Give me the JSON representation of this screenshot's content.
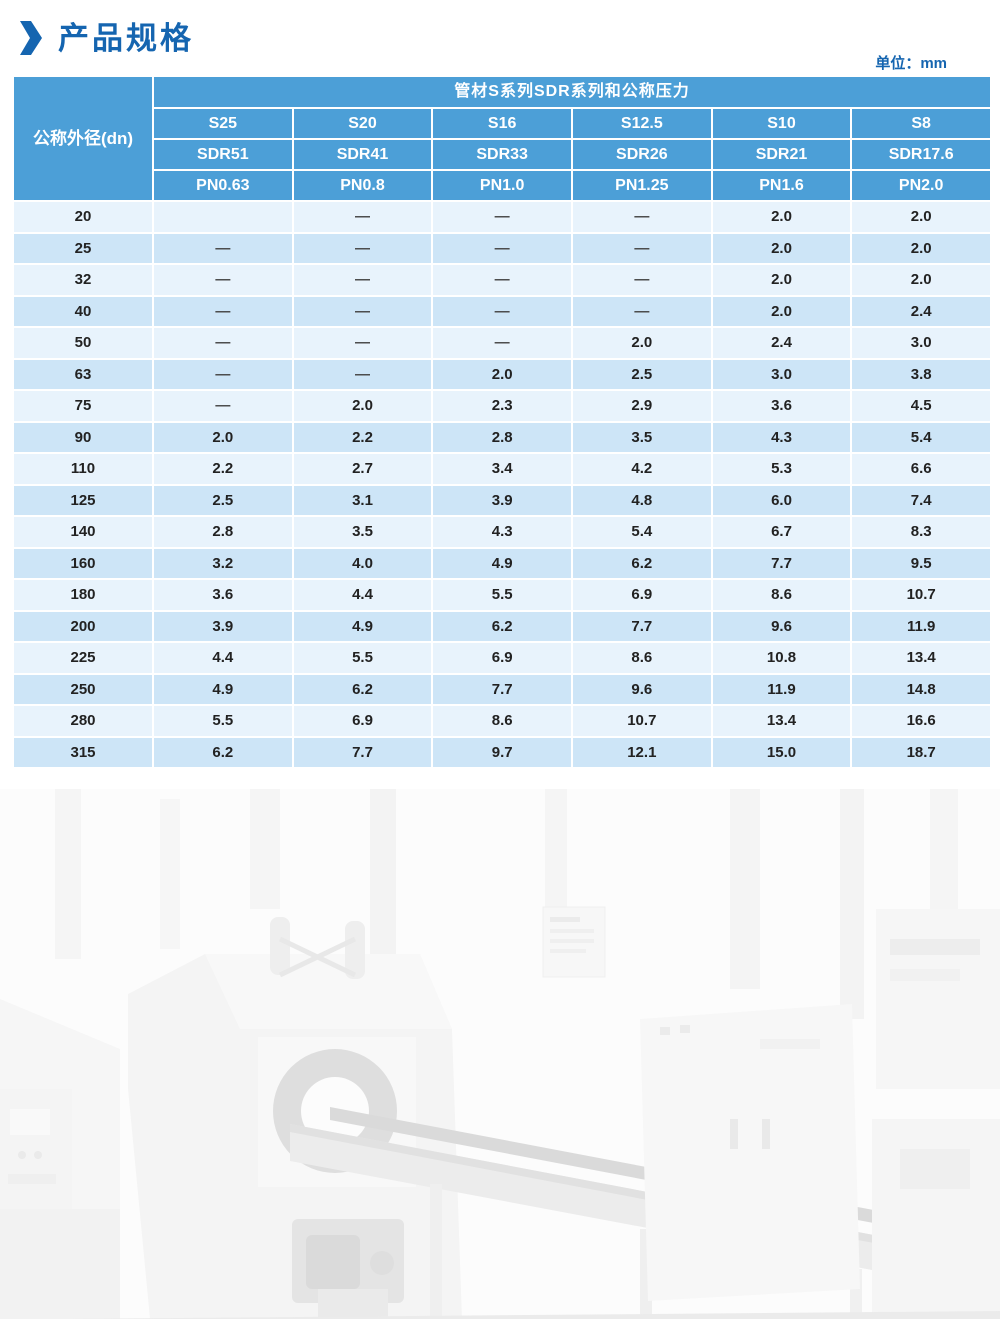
{
  "page": {
    "title": "产品规格",
    "unit_label": "单位：mm"
  },
  "table": {
    "group_header": "管材S系列SDR系列和公称压力",
    "row_header": "公称外径(dn)",
    "columns": [
      {
        "s": "S25",
        "sdr": "SDR51",
        "pn": "PN0.63"
      },
      {
        "s": "S20",
        "sdr": "SDR41",
        "pn": "PN0.8"
      },
      {
        "s": "S16",
        "sdr": "SDR33",
        "pn": "PN1.0"
      },
      {
        "s": "S12.5",
        "sdr": "SDR26",
        "pn": "PN1.25"
      },
      {
        "s": "S10",
        "sdr": "SDR21",
        "pn": "PN1.6"
      },
      {
        "s": "S8",
        "sdr": "SDR17.6",
        "pn": "PN2.0"
      }
    ],
    "rows": [
      {
        "dn": "20",
        "values": [
          "",
          "—",
          "—",
          "—",
          "2.0",
          "2.0"
        ]
      },
      {
        "dn": "25",
        "values": [
          "—",
          "—",
          "—",
          "—",
          "2.0",
          "2.0"
        ]
      },
      {
        "dn": "32",
        "values": [
          "—",
          "—",
          "—",
          "—",
          "2.0",
          "2.0"
        ]
      },
      {
        "dn": "40",
        "values": [
          "—",
          "—",
          "—",
          "—",
          "2.0",
          "2.4"
        ]
      },
      {
        "dn": "50",
        "values": [
          "—",
          "—",
          "—",
          "2.0",
          "2.4",
          "3.0"
        ]
      },
      {
        "dn": "63",
        "values": [
          "—",
          "—",
          "2.0",
          "2.5",
          "3.0",
          "3.8"
        ]
      },
      {
        "dn": "75",
        "values": [
          "—",
          "2.0",
          "2.3",
          "2.9",
          "3.6",
          "4.5"
        ]
      },
      {
        "dn": "90",
        "values": [
          "2.0",
          "2.2",
          "2.8",
          "3.5",
          "4.3",
          "5.4"
        ]
      },
      {
        "dn": "110",
        "values": [
          "2.2",
          "2.7",
          "3.4",
          "4.2",
          "5.3",
          "6.6"
        ]
      },
      {
        "dn": "125",
        "values": [
          "2.5",
          "3.1",
          "3.9",
          "4.8",
          "6.0",
          "7.4"
        ]
      },
      {
        "dn": "140",
        "values": [
          "2.8",
          "3.5",
          "4.3",
          "5.4",
          "6.7",
          "8.3"
        ]
      },
      {
        "dn": "160",
        "values": [
          "3.2",
          "4.0",
          "4.9",
          "6.2",
          "7.7",
          "9.5"
        ]
      },
      {
        "dn": "180",
        "values": [
          "3.6",
          "4.4",
          "5.5",
          "6.9",
          "8.6",
          "10.7"
        ]
      },
      {
        "dn": "200",
        "values": [
          "3.9",
          "4.9",
          "6.2",
          "7.7",
          "9.6",
          "11.9"
        ]
      },
      {
        "dn": "225",
        "values": [
          "4.4",
          "5.5",
          "6.9",
          "8.6",
          "10.8",
          "13.4"
        ]
      },
      {
        "dn": "250",
        "values": [
          "4.9",
          "6.2",
          "7.7",
          "9.6",
          "11.9",
          "14.8"
        ]
      },
      {
        "dn": "280",
        "values": [
          "5.5",
          "6.9",
          "8.6",
          "10.7",
          "13.4",
          "16.6"
        ]
      },
      {
        "dn": "315",
        "values": [
          "6.2",
          "7.7",
          "9.7",
          "12.1",
          "15.0",
          "18.7"
        ]
      }
    ]
  },
  "colors": {
    "header_blue": "#4C9FD7",
    "row_light": "#E8F3FC",
    "row_dark": "#CDE5F7",
    "title_blue": "#1565B0",
    "dash": "#4A4A4A",
    "cell_text": "#222222"
  }
}
